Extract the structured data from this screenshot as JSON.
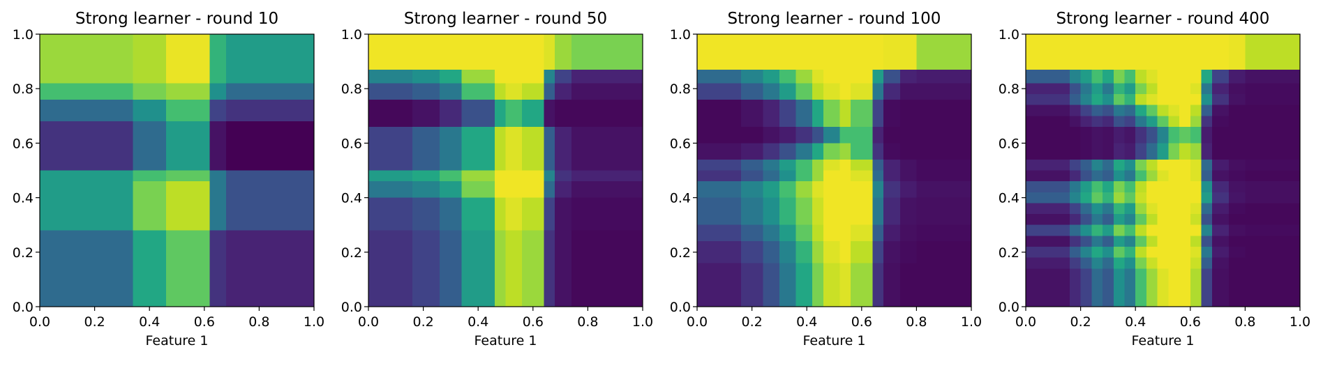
{
  "colormap": "viridis",
  "chart_data": [
    {
      "type": "heatmap",
      "title": "Strong learner - round 10",
      "xlabel": "Feature 1",
      "ylabel": "",
      "xlim": [
        0,
        1
      ],
      "ylim": [
        0,
        1
      ],
      "xticks": [
        "0.0",
        "0.2",
        "0.4",
        "0.6",
        "0.8",
        "1.0"
      ],
      "yticks": [
        "0.0",
        "0.2",
        "0.4",
        "0.6",
        "0.8",
        "1.0"
      ],
      "x_edges": [
        0,
        0.34,
        0.46,
        0.62,
        0.68,
        0.74,
        1.0
      ],
      "y_edges": [
        1.0,
        0.82,
        0.76,
        0.68,
        0.5,
        0.46,
        0.28,
        0
      ],
      "values": [
        [
          0.85,
          0.88,
          0.97,
          0.65,
          0.55,
          0.55
        ],
        [
          0.7,
          0.8,
          0.85,
          0.5,
          0.35,
          0.35
        ],
        [
          0.35,
          0.5,
          0.7,
          0.2,
          0.15,
          0.15
        ],
        [
          0.15,
          0.35,
          0.55,
          0.05,
          0.0,
          0.0
        ],
        [
          0.55,
          0.7,
          0.75,
          0.4,
          0.25,
          0.25
        ],
        [
          0.55,
          0.8,
          0.9,
          0.4,
          0.25,
          0.25
        ],
        [
          0.35,
          0.6,
          0.75,
          0.15,
          0.1,
          0.1
        ]
      ]
    },
    {
      "type": "heatmap",
      "title": "Strong learner - round 50",
      "xlabel": "Feature 1",
      "ylabel": "",
      "xlim": [
        0,
        1
      ],
      "ylim": [
        0,
        1
      ],
      "xticks": [
        "0.0",
        "0.2",
        "0.4",
        "0.6",
        "0.8",
        "1.0"
      ],
      "yticks": [
        "0.0",
        "0.2",
        "0.4",
        "0.6",
        "0.8",
        "1.0"
      ],
      "x_edges": [
        0,
        0.16,
        0.26,
        0.34,
        0.46,
        0.5,
        0.56,
        0.64,
        0.68,
        0.74,
        1.0
      ],
      "y_edges": [
        1.0,
        0.87,
        0.82,
        0.76,
        0.66,
        0.5,
        0.46,
        0.4,
        0.28,
        0
      ],
      "values": [
        [
          0.98,
          0.98,
          0.98,
          0.98,
          0.98,
          0.98,
          0.98,
          0.95,
          0.85,
          0.8
        ],
        [
          0.45,
          0.5,
          0.6,
          0.85,
          0.98,
          0.98,
          0.98,
          0.45,
          0.2,
          0.1
        ],
        [
          0.25,
          0.3,
          0.4,
          0.7,
          0.9,
          0.95,
          0.9,
          0.3,
          0.1,
          0.05
        ],
        [
          0.02,
          0.05,
          0.12,
          0.25,
          0.6,
          0.7,
          0.6,
          0.05,
          0.02,
          0.02
        ],
        [
          0.2,
          0.3,
          0.4,
          0.6,
          0.9,
          0.95,
          0.9,
          0.3,
          0.1,
          0.05
        ],
        [
          0.55,
          0.6,
          0.7,
          0.85,
          0.98,
          0.98,
          0.98,
          0.45,
          0.15,
          0.1
        ],
        [
          0.4,
          0.45,
          0.55,
          0.8,
          0.98,
          0.98,
          0.98,
          0.35,
          0.1,
          0.05
        ],
        [
          0.2,
          0.25,
          0.35,
          0.6,
          0.9,
          0.95,
          0.9,
          0.2,
          0.05,
          0.03
        ],
        [
          0.15,
          0.2,
          0.3,
          0.55,
          0.85,
          0.9,
          0.85,
          0.15,
          0.05,
          0.02
        ]
      ]
    },
    {
      "type": "heatmap",
      "title": "Strong learner - round 100",
      "xlabel": "Feature 1",
      "ylabel": "",
      "xlim": [
        0,
        1
      ],
      "ylim": [
        0,
        1
      ],
      "xticks": [
        "0.0",
        "0.2",
        "0.4",
        "0.6",
        "0.8",
        "1.0"
      ],
      "yticks": [
        "0.0",
        "0.2",
        "0.4",
        "0.6",
        "0.8",
        "1.0"
      ],
      "x_edges": [
        0,
        0.16,
        0.24,
        0.3,
        0.36,
        0.42,
        0.46,
        0.52,
        0.56,
        0.64,
        0.68,
        0.74,
        0.8,
        1.0
      ],
      "y_edges": [
        1.0,
        0.87,
        0.82,
        0.76,
        0.66,
        0.6,
        0.54,
        0.5,
        0.46,
        0.4,
        0.3,
        0.24,
        0.16,
        0
      ],
      "values": [
        [
          0.98,
          0.98,
          0.98,
          0.98,
          0.98,
          0.98,
          0.98,
          0.98,
          0.98,
          0.98,
          0.97,
          0.97,
          0.85
        ],
        [
          0.35,
          0.45,
          0.55,
          0.7,
          0.85,
          0.95,
          0.98,
          0.98,
          0.98,
          0.55,
          0.25,
          0.1,
          0.08
        ],
        [
          0.2,
          0.3,
          0.4,
          0.55,
          0.75,
          0.9,
          0.95,
          0.98,
          0.95,
          0.4,
          0.12,
          0.05,
          0.05
        ],
        [
          0.02,
          0.05,
          0.1,
          0.2,
          0.35,
          0.6,
          0.8,
          0.9,
          0.75,
          0.2,
          0.03,
          0.02,
          0.02
        ],
        [
          0.02,
          0.02,
          0.05,
          0.08,
          0.15,
          0.25,
          0.45,
          0.7,
          0.7,
          0.1,
          0.02,
          0.02,
          0.02
        ],
        [
          0.05,
          0.08,
          0.15,
          0.25,
          0.4,
          0.6,
          0.8,
          0.85,
          0.7,
          0.15,
          0.03,
          0.02,
          0.02
        ],
        [
          0.2,
          0.3,
          0.4,
          0.55,
          0.7,
          0.85,
          0.95,
          0.98,
          0.9,
          0.3,
          0.1,
          0.05,
          0.03
        ],
        [
          0.15,
          0.25,
          0.35,
          0.5,
          0.7,
          0.85,
          0.98,
          0.98,
          0.95,
          0.35,
          0.1,
          0.05,
          0.03
        ],
        [
          0.35,
          0.45,
          0.55,
          0.7,
          0.85,
          0.95,
          0.98,
          0.98,
          0.98,
          0.45,
          0.15,
          0.08,
          0.05
        ],
        [
          0.3,
          0.4,
          0.5,
          0.65,
          0.8,
          0.92,
          0.98,
          0.98,
          0.98,
          0.4,
          0.12,
          0.05,
          0.04
        ],
        [
          0.2,
          0.3,
          0.4,
          0.55,
          0.75,
          0.9,
          0.98,
          0.98,
          0.95,
          0.3,
          0.08,
          0.04,
          0.03
        ],
        [
          0.12,
          0.2,
          0.3,
          0.45,
          0.65,
          0.85,
          0.95,
          0.98,
          0.9,
          0.2,
          0.05,
          0.03,
          0.02
        ],
        [
          0.08,
          0.15,
          0.25,
          0.4,
          0.6,
          0.8,
          0.92,
          0.95,
          0.85,
          0.15,
          0.04,
          0.02,
          0.02
        ]
      ]
    },
    {
      "type": "heatmap",
      "title": "Strong learner - round 400",
      "xlabel": "Feature 1",
      "ylabel": "",
      "xlim": [
        0,
        1
      ],
      "ylim": [
        0,
        1
      ],
      "xticks": [
        "0.0",
        "0.2",
        "0.4",
        "0.6",
        "0.8",
        "1.0"
      ],
      "yticks": [
        "0.0",
        "0.2",
        "0.4",
        "0.6",
        "0.8",
        "1.0"
      ],
      "x_edges": [
        0,
        0.16,
        0.2,
        0.24,
        0.28,
        0.32,
        0.36,
        0.4,
        0.44,
        0.48,
        0.52,
        0.56,
        0.6,
        0.64,
        0.68,
        0.74,
        0.8,
        1.0
      ],
      "y_edges": [
        1.0,
        0.87,
        0.82,
        0.78,
        0.74,
        0.7,
        0.66,
        0.6,
        0.54,
        0.5,
        0.46,
        0.42,
        0.38,
        0.34,
        0.3,
        0.26,
        0.22,
        0.18,
        0.14,
        0
      ],
      "values": [
        [
          0.98,
          0.98,
          0.98,
          0.98,
          0.98,
          0.98,
          0.98,
          0.98,
          0.98,
          0.98,
          0.98,
          0.98,
          0.98,
          0.98,
          0.98,
          0.97,
          0.9
        ],
        [
          0.3,
          0.45,
          0.55,
          0.7,
          0.6,
          0.8,
          0.7,
          0.9,
          0.95,
          0.98,
          0.98,
          0.98,
          0.98,
          0.6,
          0.2,
          0.08,
          0.05
        ],
        [
          0.1,
          0.25,
          0.4,
          0.55,
          0.4,
          0.65,
          0.55,
          0.8,
          0.9,
          0.98,
          0.98,
          0.98,
          0.95,
          0.4,
          0.1,
          0.04,
          0.03
        ],
        [
          0.15,
          0.3,
          0.45,
          0.6,
          0.5,
          0.75,
          0.65,
          0.9,
          0.95,
          0.98,
          0.98,
          0.98,
          0.98,
          0.5,
          0.15,
          0.05,
          0.03
        ],
        [
          0.05,
          0.1,
          0.2,
          0.3,
          0.25,
          0.4,
          0.35,
          0.6,
          0.75,
          0.9,
          0.95,
          0.98,
          0.9,
          0.3,
          0.05,
          0.02,
          0.02
        ],
        [
          0.02,
          0.05,
          0.1,
          0.15,
          0.12,
          0.25,
          0.2,
          0.4,
          0.55,
          0.75,
          0.9,
          0.98,
          0.85,
          0.15,
          0.03,
          0.02,
          0.02
        ],
        [
          0.02,
          0.02,
          0.03,
          0.05,
          0.04,
          0.08,
          0.06,
          0.15,
          0.25,
          0.45,
          0.7,
          0.75,
          0.7,
          0.08,
          0.02,
          0.02,
          0.02
        ],
        [
          0.02,
          0.02,
          0.03,
          0.05,
          0.04,
          0.1,
          0.08,
          0.2,
          0.35,
          0.55,
          0.8,
          0.9,
          0.85,
          0.1,
          0.02,
          0.02,
          0.02
        ],
        [
          0.1,
          0.2,
          0.3,
          0.45,
          0.35,
          0.6,
          0.5,
          0.8,
          0.9,
          0.98,
          0.98,
          0.98,
          0.95,
          0.35,
          0.08,
          0.04,
          0.03
        ],
        [
          0.05,
          0.12,
          0.25,
          0.35,
          0.3,
          0.5,
          0.4,
          0.7,
          0.85,
          0.95,
          0.98,
          0.98,
          0.95,
          0.3,
          0.05,
          0.03,
          0.02
        ],
        [
          0.25,
          0.4,
          0.55,
          0.7,
          0.6,
          0.8,
          0.7,
          0.9,
          0.98,
          0.98,
          0.98,
          0.98,
          0.98,
          0.5,
          0.12,
          0.05,
          0.04
        ],
        [
          0.3,
          0.45,
          0.6,
          0.75,
          0.65,
          0.85,
          0.75,
          0.92,
          0.98,
          0.98,
          0.98,
          0.98,
          0.98,
          0.55,
          0.15,
          0.06,
          0.04
        ],
        [
          0.1,
          0.2,
          0.35,
          0.5,
          0.4,
          0.65,
          0.55,
          0.85,
          0.95,
          0.98,
          0.98,
          0.98,
          0.95,
          0.35,
          0.08,
          0.03,
          0.02
        ],
        [
          0.05,
          0.12,
          0.25,
          0.4,
          0.3,
          0.55,
          0.45,
          0.75,
          0.9,
          0.98,
          0.98,
          0.98,
          0.92,
          0.25,
          0.05,
          0.02,
          0.02
        ],
        [
          0.2,
          0.35,
          0.5,
          0.65,
          0.55,
          0.8,
          0.7,
          0.9,
          0.98,
          0.98,
          0.98,
          0.98,
          0.98,
          0.45,
          0.1,
          0.04,
          0.03
        ],
        [
          0.05,
          0.15,
          0.25,
          0.4,
          0.3,
          0.55,
          0.45,
          0.75,
          0.9,
          0.98,
          0.98,
          0.98,
          0.9,
          0.25,
          0.05,
          0.02,
          0.02
        ],
        [
          0.15,
          0.3,
          0.45,
          0.6,
          0.5,
          0.75,
          0.65,
          0.9,
          0.98,
          0.98,
          0.98,
          0.98,
          0.95,
          0.4,
          0.08,
          0.03,
          0.02
        ],
        [
          0.08,
          0.18,
          0.3,
          0.45,
          0.35,
          0.6,
          0.5,
          0.8,
          0.92,
          0.98,
          0.98,
          0.98,
          0.92,
          0.3,
          0.05,
          0.02,
          0.02
        ],
        [
          0.05,
          0.12,
          0.2,
          0.35,
          0.28,
          0.5,
          0.4,
          0.7,
          0.85,
          0.95,
          0.98,
          0.98,
          0.88,
          0.2,
          0.04,
          0.02,
          0.02
        ]
      ]
    }
  ]
}
